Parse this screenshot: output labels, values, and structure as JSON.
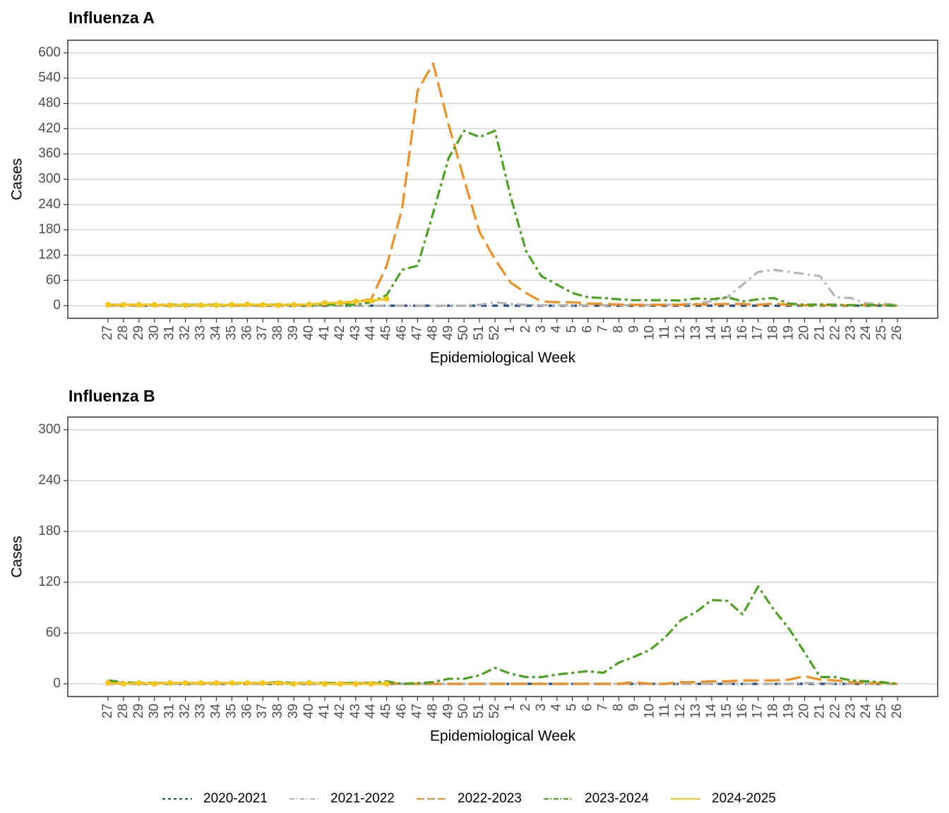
{
  "chart_data": [
    {
      "type": "line",
      "title": "Influenza A",
      "x_label": "Epidemiological Week",
      "y_label": "Cases",
      "categories": [
        "27",
        "28",
        "29",
        "30",
        "31",
        "32",
        "33",
        "34",
        "35",
        "36",
        "37",
        "38",
        "39",
        "40",
        "41",
        "42",
        "43",
        "44",
        "45",
        "46",
        "47",
        "48",
        "49",
        "50",
        "51",
        "52",
        "1",
        "2",
        "3",
        "4",
        "5",
        "6",
        "7",
        "8",
        "9",
        "10",
        "11",
        "12",
        "13",
        "14",
        "15",
        "16",
        "17",
        "18",
        "19",
        "20",
        "21",
        "22",
        "23",
        "24",
        "25",
        "26"
      ],
      "ylim": [
        -30,
        630
      ],
      "yticks": [
        0,
        60,
        120,
        180,
        240,
        300,
        360,
        420,
        480,
        540,
        600
      ],
      "grid": true,
      "legend": "bottom",
      "series": [
        {
          "name": "2020-2021",
          "color": "#1f4e8c",
          "dash": "8 8",
          "values": [
            0,
            0,
            0,
            0,
            0,
            0,
            0,
            0,
            0,
            0,
            0,
            0,
            0,
            0,
            0,
            0,
            0,
            0,
            0,
            0,
            0,
            0,
            0,
            0,
            0,
            0,
            0,
            0,
            0,
            0,
            0,
            0,
            0,
            0,
            0,
            0,
            0,
            0,
            0,
            0,
            0,
            0,
            0,
            0,
            0,
            0,
            0,
            0,
            0,
            0,
            0,
            0
          ]
        },
        {
          "name": "2021-2022",
          "color": "#b3b3b3",
          "dash": "14 6 3 6",
          "values": [
            0,
            0,
            0,
            0,
            0,
            0,
            0,
            0,
            0,
            0,
            0,
            0,
            0,
            0,
            0,
            0,
            0,
            0,
            0,
            0,
            0,
            0,
            0,
            0,
            2,
            8,
            4,
            2,
            1,
            1,
            1,
            1,
            1,
            1,
            1,
            1,
            2,
            3,
            5,
            10,
            20,
            50,
            80,
            85,
            80,
            75,
            70,
            20,
            18,
            5,
            5,
            2
          ]
        },
        {
          "name": "2022-2023",
          "color": "#f28e1c",
          "dash": "22 8",
          "values": [
            1,
            1,
            1,
            1,
            1,
            1,
            1,
            1,
            1,
            1,
            1,
            1,
            2,
            2,
            3,
            5,
            10,
            15,
            95,
            230,
            510,
            575,
            430,
            300,
            175,
            110,
            55,
            30,
            10,
            8,
            8,
            5,
            4,
            3,
            2,
            2,
            2,
            2,
            3,
            3,
            4,
            4,
            2,
            5,
            2,
            1,
            1,
            1,
            1,
            1,
            1,
            0
          ]
        },
        {
          "name": "2023-2024",
          "color": "#4aa31c",
          "dash": "14 5 4 5",
          "values": [
            2,
            2,
            2,
            2,
            2,
            2,
            2,
            2,
            2,
            2,
            2,
            2,
            2,
            2,
            2,
            2,
            2,
            8,
            25,
            85,
            95,
            220,
            350,
            415,
            400,
            415,
            260,
            130,
            70,
            50,
            30,
            20,
            18,
            15,
            13,
            13,
            13,
            12,
            17,
            15,
            20,
            10,
            15,
            18,
            5,
            2,
            3,
            2,
            1,
            1,
            1,
            0
          ]
        },
        {
          "name": "2024-2025",
          "color": "#f5c518",
          "dash": "none",
          "points": true,
          "values": [
            2,
            2,
            2,
            2,
            1,
            1,
            1,
            1,
            2,
            3,
            2,
            1,
            2,
            3,
            6,
            7,
            10,
            12,
            16,
            null,
            null,
            null,
            null,
            null,
            null,
            null,
            null,
            null,
            null,
            null,
            null,
            null,
            null,
            null,
            null,
            null,
            null,
            null,
            null,
            null,
            null,
            null,
            null,
            null,
            null,
            null,
            null,
            null,
            null,
            null,
            null,
            null
          ]
        }
      ]
    },
    {
      "type": "line",
      "title": "Influenza B",
      "x_label": "Epidemiological Week",
      "y_label": "Cases",
      "categories": [
        "27",
        "28",
        "29",
        "30",
        "31",
        "32",
        "33",
        "34",
        "35",
        "36",
        "37",
        "38",
        "39",
        "40",
        "41",
        "42",
        "43",
        "44",
        "45",
        "46",
        "47",
        "48",
        "49",
        "50",
        "51",
        "52",
        "1",
        "2",
        "3",
        "4",
        "5",
        "6",
        "7",
        "8",
        "9",
        "10",
        "11",
        "12",
        "13",
        "14",
        "15",
        "16",
        "17",
        "18",
        "19",
        "20",
        "21",
        "22",
        "23",
        "24",
        "25",
        "26"
      ],
      "ylim": [
        -15,
        315
      ],
      "yticks": [
        0,
        60,
        120,
        180,
        240,
        300
      ],
      "grid": true,
      "series": [
        {
          "name": "2020-2021",
          "color": "#1f4e8c",
          "dash": "8 8",
          "values": [
            0,
            0,
            0,
            0,
            0,
            0,
            0,
            0,
            0,
            0,
            0,
            0,
            0,
            0,
            0,
            0,
            0,
            0,
            0,
            0,
            0,
            0,
            0,
            0,
            0,
            0,
            0,
            0,
            0,
            0,
            0,
            0,
            0,
            0,
            0,
            0,
            0,
            0,
            0,
            0,
            0,
            0,
            0,
            0,
            0,
            0,
            0,
            0,
            0,
            0,
            0,
            0
          ]
        },
        {
          "name": "2021-2022",
          "color": "#b3b3b3",
          "dash": "14 6 3 6",
          "values": [
            0,
            0,
            0,
            0,
            0,
            0,
            0,
            0,
            0,
            0,
            0,
            0,
            0,
            0,
            0,
            0,
            0,
            0,
            0,
            0,
            0,
            0,
            0,
            0,
            0,
            0,
            0,
            0,
            0,
            0,
            0,
            0,
            0,
            0,
            0,
            0,
            0,
            0,
            0,
            0,
            0,
            0,
            0,
            0,
            0,
            1,
            1,
            0,
            0,
            0,
            0,
            0
          ]
        },
        {
          "name": "2022-2023",
          "color": "#f28e1c",
          "dash": "22 8",
          "values": [
            1,
            1,
            1,
            1,
            1,
            1,
            1,
            1,
            1,
            1,
            1,
            1,
            1,
            1,
            1,
            1,
            1,
            1,
            1,
            0,
            0,
            0,
            0,
            0,
            0,
            0,
            0,
            0,
            0,
            0,
            0,
            0,
            0,
            0,
            2,
            0,
            0,
            2,
            2,
            3,
            3,
            4,
            4,
            4,
            5,
            9,
            5,
            4,
            2,
            1,
            1,
            0
          ]
        },
        {
          "name": "2023-2024",
          "color": "#4aa31c",
          "dash": "14 5 4 5",
          "values": [
            4,
            2,
            1,
            1,
            1,
            1,
            1,
            1,
            1,
            1,
            1,
            2,
            1,
            1,
            1,
            1,
            1,
            1,
            3,
            0,
            1,
            2,
            6,
            6,
            10,
            19,
            12,
            8,
            8,
            11,
            13,
            15,
            13,
            25,
            32,
            40,
            55,
            75,
            85,
            99,
            98,
            82,
            115,
            88,
            65,
            37,
            8,
            8,
            4,
            3,
            2,
            0
          ]
        },
        {
          "name": "2024-2025",
          "color": "#f5c518",
          "dash": "none",
          "points": true,
          "values": [
            1,
            0,
            1,
            0,
            1,
            1,
            1,
            1,
            1,
            1,
            1,
            1,
            0,
            1,
            0,
            0,
            0,
            0,
            0,
            null,
            null,
            null,
            null,
            null,
            null,
            null,
            null,
            null,
            null,
            null,
            null,
            null,
            null,
            null,
            null,
            null,
            null,
            null,
            null,
            null,
            null,
            null,
            null,
            null,
            null,
            null,
            null,
            null,
            null,
            null,
            null,
            null
          ]
        }
      ]
    }
  ]
}
